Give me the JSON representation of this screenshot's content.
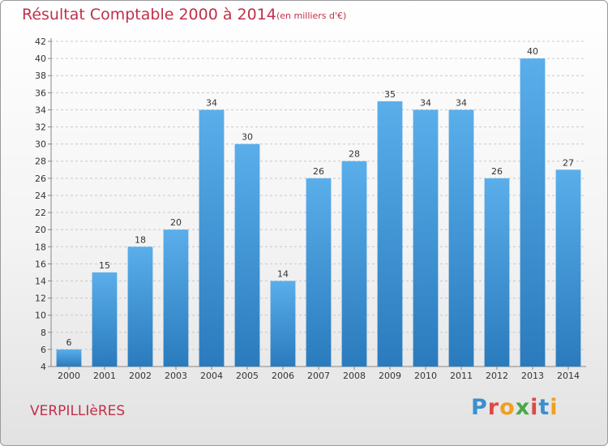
{
  "header": {
    "title": "Résultat Comptable 2000 à 2014",
    "subtitle": "(en milliers d'€)"
  },
  "footer": {
    "town": "VERPILLIèRES",
    "logo_letters": [
      "P",
      "r",
      "o",
      "x",
      "i",
      "t",
      "i"
    ],
    "logo_colors": [
      "#3a8fd0",
      "#e04848",
      "#f0a020",
      "#48a848",
      "#e04848",
      "#3a8fd0",
      "#f0a020"
    ]
  },
  "chart_data": {
    "type": "bar",
    "categories": [
      "2000",
      "2001",
      "2002",
      "2003",
      "2004",
      "2005",
      "2006",
      "2007",
      "2008",
      "2009",
      "2010",
      "2011",
      "2012",
      "2013",
      "2014"
    ],
    "values": [
      6,
      15,
      18,
      20,
      34,
      30,
      14,
      26,
      28,
      35,
      34,
      34,
      26,
      40,
      27
    ],
    "ylim": [
      4,
      42
    ],
    "ytick_step": 2,
    "grid": "horizontal dashed",
    "bar_color_top": "#5aaeea",
    "bar_color_bottom": "#2a7bbd",
    "title_color": "#c0304a"
  }
}
